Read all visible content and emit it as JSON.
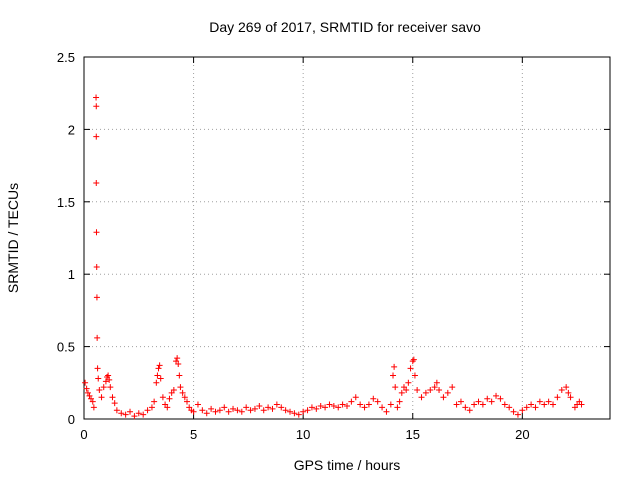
{
  "chart_data": {
    "type": "scatter",
    "title": "Day 269 of 2017, SRMTID for receiver savo",
    "xlabel": "GPS time / hours",
    "ylabel": "SRMTID / TECUs",
    "xlim": [
      0,
      24
    ],
    "ylim": [
      0,
      2.5
    ],
    "x_ticks": [
      0,
      5,
      10,
      15,
      20
    ],
    "x_tick_labels": [
      "0",
      "5",
      "10",
      "15",
      "20"
    ],
    "y_ticks": [
      0,
      0.5,
      1,
      1.5,
      2,
      2.5
    ],
    "y_tick_labels": [
      "0",
      "0.5",
      "1",
      "1.5",
      "2",
      "2.5"
    ],
    "grid": true,
    "marker": "+",
    "series": [
      {
        "name": "SRMTID",
        "color": "#ff0000",
        "points": [
          [
            0.05,
            0.25
          ],
          [
            0.12,
            0.21
          ],
          [
            0.18,
            0.18
          ],
          [
            0.25,
            0.16
          ],
          [
            0.32,
            0.14
          ],
          [
            0.4,
            0.12
          ],
          [
            0.45,
            0.08
          ],
          [
            0.55,
            2.22
          ],
          [
            0.56,
            2.16
          ],
          [
            0.56,
            1.95
          ],
          [
            0.56,
            1.63
          ],
          [
            0.57,
            1.29
          ],
          [
            0.58,
            1.05
          ],
          [
            0.59,
            0.84
          ],
          [
            0.6,
            0.56
          ],
          [
            0.62,
            0.35
          ],
          [
            0.65,
            0.28
          ],
          [
            0.7,
            0.2
          ],
          [
            0.8,
            0.15
          ],
          [
            0.9,
            0.22
          ],
          [
            1.0,
            0.26
          ],
          [
            1.05,
            0.29
          ],
          [
            1.1,
            0.3
          ],
          [
            1.15,
            0.27
          ],
          [
            1.2,
            0.22
          ],
          [
            1.3,
            0.15
          ],
          [
            1.4,
            0.11
          ],
          [
            1.5,
            0.06
          ],
          [
            1.7,
            0.04
          ],
          [
            1.9,
            0.03
          ],
          [
            2.1,
            0.05
          ],
          [
            2.3,
            0.02
          ],
          [
            2.5,
            0.04
          ],
          [
            2.7,
            0.03
          ],
          [
            2.9,
            0.06
          ],
          [
            3.1,
            0.08
          ],
          [
            3.2,
            0.12
          ],
          [
            3.3,
            0.25
          ],
          [
            3.35,
            0.3
          ],
          [
            3.4,
            0.35
          ],
          [
            3.45,
            0.37
          ],
          [
            3.5,
            0.28
          ],
          [
            3.6,
            0.15
          ],
          [
            3.7,
            0.1
          ],
          [
            3.8,
            0.08
          ],
          [
            3.9,
            0.14
          ],
          [
            4.0,
            0.18
          ],
          [
            4.1,
            0.2
          ],
          [
            4.2,
            0.4
          ],
          [
            4.25,
            0.42
          ],
          [
            4.3,
            0.38
          ],
          [
            4.35,
            0.3
          ],
          [
            4.4,
            0.22
          ],
          [
            4.5,
            0.18
          ],
          [
            4.6,
            0.15
          ],
          [
            4.7,
            0.12
          ],
          [
            4.8,
            0.08
          ],
          [
            4.9,
            0.06
          ],
          [
            5.0,
            0.05
          ],
          [
            5.2,
            0.1
          ],
          [
            5.4,
            0.06
          ],
          [
            5.6,
            0.04
          ],
          [
            5.8,
            0.07
          ],
          [
            6.0,
            0.05
          ],
          [
            6.2,
            0.06
          ],
          [
            6.4,
            0.08
          ],
          [
            6.6,
            0.05
          ],
          [
            6.8,
            0.07
          ],
          [
            7.0,
            0.06
          ],
          [
            7.2,
            0.05
          ],
          [
            7.4,
            0.08
          ],
          [
            7.6,
            0.06
          ],
          [
            7.8,
            0.07
          ],
          [
            8.0,
            0.09
          ],
          [
            8.2,
            0.06
          ],
          [
            8.4,
            0.08
          ],
          [
            8.6,
            0.07
          ],
          [
            8.8,
            0.1
          ],
          [
            9.0,
            0.08
          ],
          [
            9.2,
            0.06
          ],
          [
            9.4,
            0.05
          ],
          [
            9.6,
            0.04
          ],
          [
            9.8,
            0.03
          ],
          [
            10.0,
            0.05
          ],
          [
            10.2,
            0.06
          ],
          [
            10.4,
            0.08
          ],
          [
            10.6,
            0.07
          ],
          [
            10.8,
            0.09
          ],
          [
            11.0,
            0.08
          ],
          [
            11.2,
            0.1
          ],
          [
            11.4,
            0.09
          ],
          [
            11.6,
            0.08
          ],
          [
            11.8,
            0.1
          ],
          [
            12.0,
            0.09
          ],
          [
            12.2,
            0.12
          ],
          [
            12.4,
            0.15
          ],
          [
            12.6,
            0.1
          ],
          [
            12.8,
            0.08
          ],
          [
            13.0,
            0.1
          ],
          [
            13.2,
            0.14
          ],
          [
            13.4,
            0.12
          ],
          [
            13.6,
            0.08
          ],
          [
            13.8,
            0.05
          ],
          [
            14.0,
            0.1
          ],
          [
            14.1,
            0.3
          ],
          [
            14.15,
            0.36
          ],
          [
            14.2,
            0.22
          ],
          [
            14.3,
            0.08
          ],
          [
            14.4,
            0.12
          ],
          [
            14.5,
            0.18
          ],
          [
            14.6,
            0.22
          ],
          [
            14.7,
            0.2
          ],
          [
            14.8,
            0.25
          ],
          [
            14.9,
            0.35
          ],
          [
            15.0,
            0.4
          ],
          [
            15.05,
            0.41
          ],
          [
            15.1,
            0.3
          ],
          [
            15.2,
            0.2
          ],
          [
            15.4,
            0.15
          ],
          [
            15.6,
            0.18
          ],
          [
            15.8,
            0.2
          ],
          [
            16.0,
            0.22
          ],
          [
            16.1,
            0.25
          ],
          [
            16.2,
            0.2
          ],
          [
            16.4,
            0.15
          ],
          [
            16.6,
            0.18
          ],
          [
            16.8,
            0.22
          ],
          [
            17.0,
            0.1
          ],
          [
            17.2,
            0.12
          ],
          [
            17.4,
            0.08
          ],
          [
            17.6,
            0.06
          ],
          [
            17.8,
            0.1
          ],
          [
            18.0,
            0.12
          ],
          [
            18.2,
            0.1
          ],
          [
            18.4,
            0.14
          ],
          [
            18.6,
            0.12
          ],
          [
            18.8,
            0.16
          ],
          [
            19.0,
            0.14
          ],
          [
            19.2,
            0.1
          ],
          [
            19.4,
            0.08
          ],
          [
            19.6,
            0.05
          ],
          [
            19.8,
            0.03
          ],
          [
            20.0,
            0.06
          ],
          [
            20.2,
            0.08
          ],
          [
            20.4,
            0.1
          ],
          [
            20.6,
            0.08
          ],
          [
            20.8,
            0.12
          ],
          [
            21.0,
            0.1
          ],
          [
            21.2,
            0.12
          ],
          [
            21.4,
            0.1
          ],
          [
            21.6,
            0.15
          ],
          [
            21.8,
            0.2
          ],
          [
            22.0,
            0.22
          ],
          [
            22.1,
            0.18
          ],
          [
            22.2,
            0.15
          ],
          [
            22.4,
            0.08
          ],
          [
            22.5,
            0.1
          ],
          [
            22.6,
            0.12
          ],
          [
            22.7,
            0.1
          ]
        ]
      }
    ]
  }
}
